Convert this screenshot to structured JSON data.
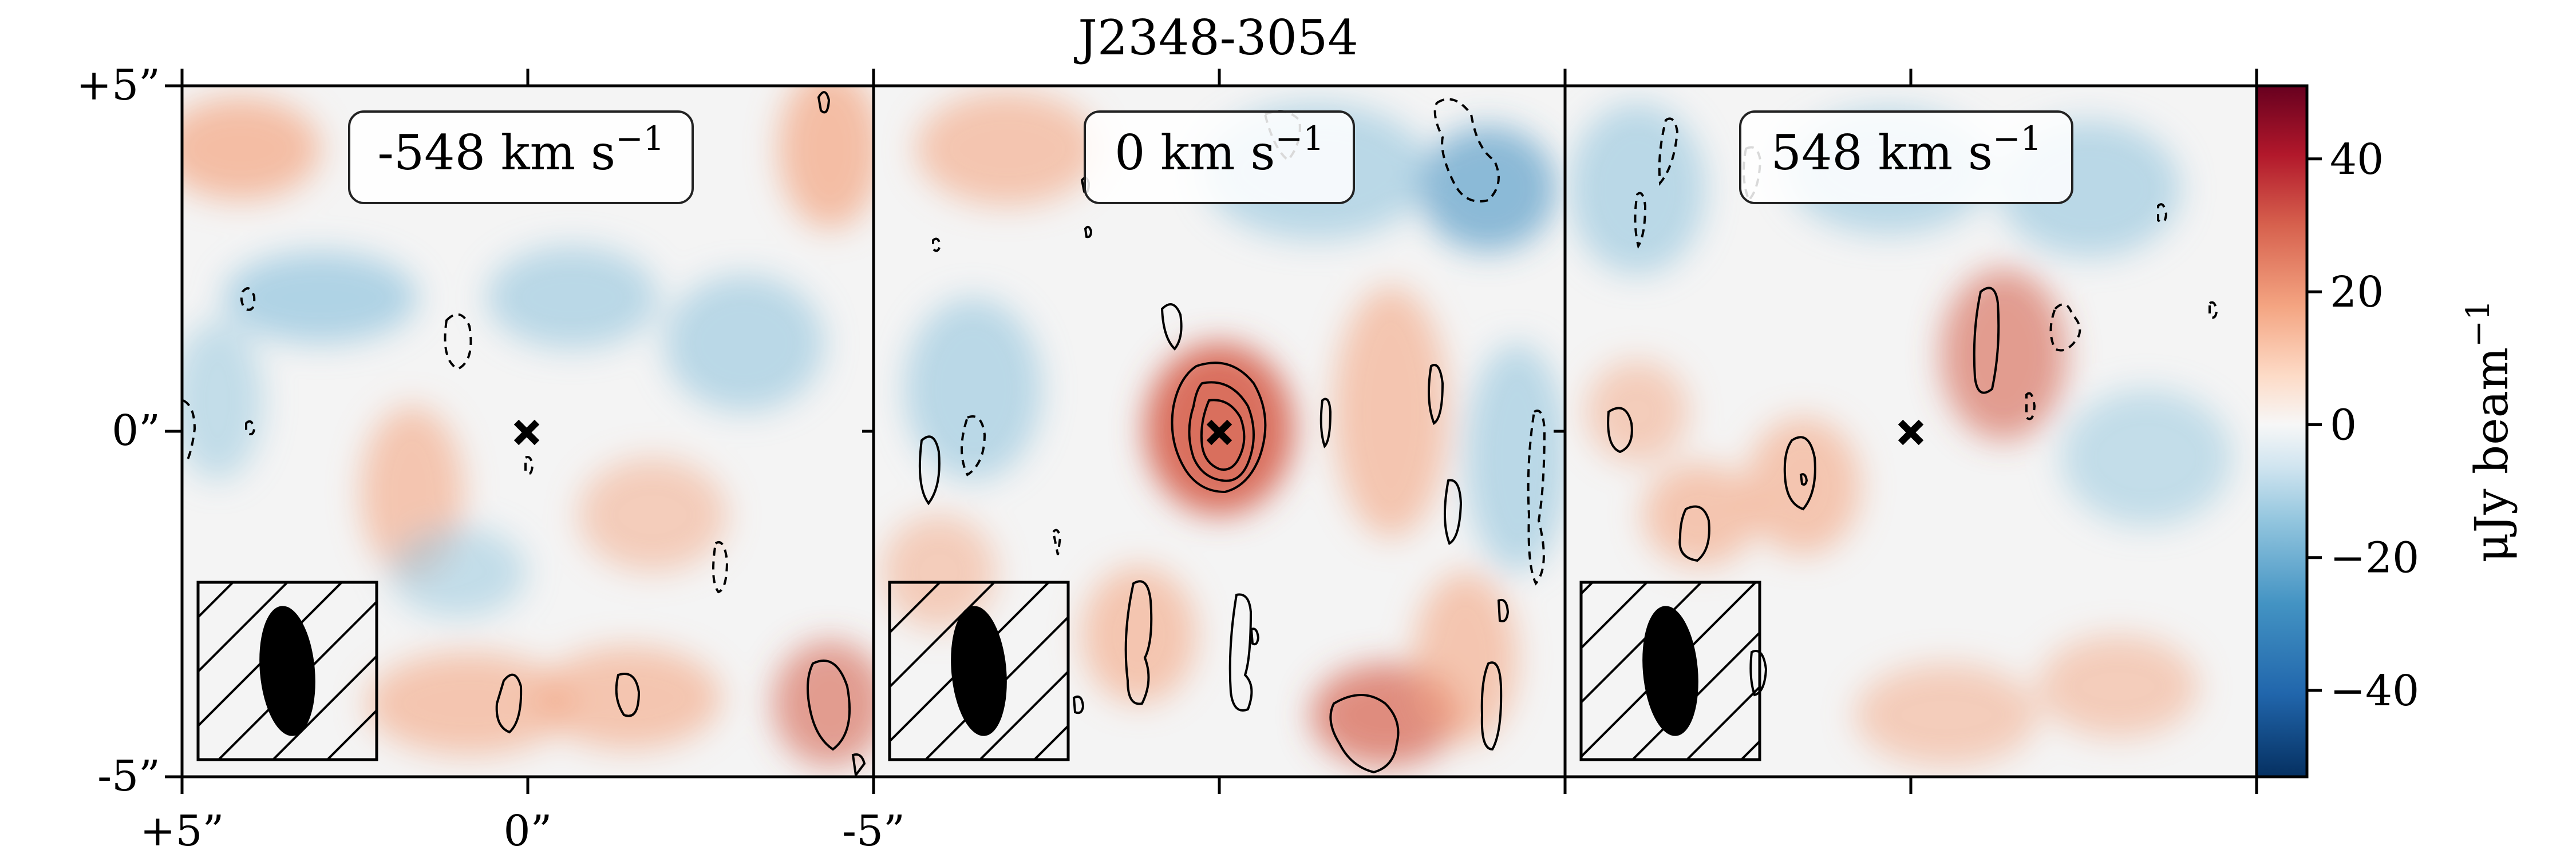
{
  "figure": {
    "title": "J2348-3054"
  },
  "chart_data": {
    "type": "heatmap",
    "title": "J2348-3054",
    "panels": [
      {
        "label_value": "-548",
        "label_unit": "km s",
        "label_exp": "−1"
      },
      {
        "label_value": "0",
        "label_unit": "km s",
        "label_exp": "−1"
      },
      {
        "label_value": "548",
        "label_unit": "km s",
        "label_exp": "−1"
      }
    ],
    "x_ticks": [
      "+5”",
      "0”",
      "-5”"
    ],
    "y_ticks": [
      "+5”",
      "0”",
      "-5”"
    ],
    "colorbar": {
      "label_main": "μJy beam",
      "label_exp": "−1",
      "range": [
        -53,
        51
      ],
      "ticks": [
        {
          "value": 40,
          "label": "40"
        },
        {
          "value": 20,
          "label": "20"
        },
        {
          "value": 0,
          "label": "0"
        },
        {
          "value": -20,
          "label": "−20"
        },
        {
          "value": -40,
          "label": "−40"
        }
      ],
      "colormap": "RdBu_r"
    },
    "colors": {
      "positive": "#b2182b",
      "zero": "#f7f7f7",
      "negative": "#2166ac",
      "contour": "#000000"
    }
  }
}
